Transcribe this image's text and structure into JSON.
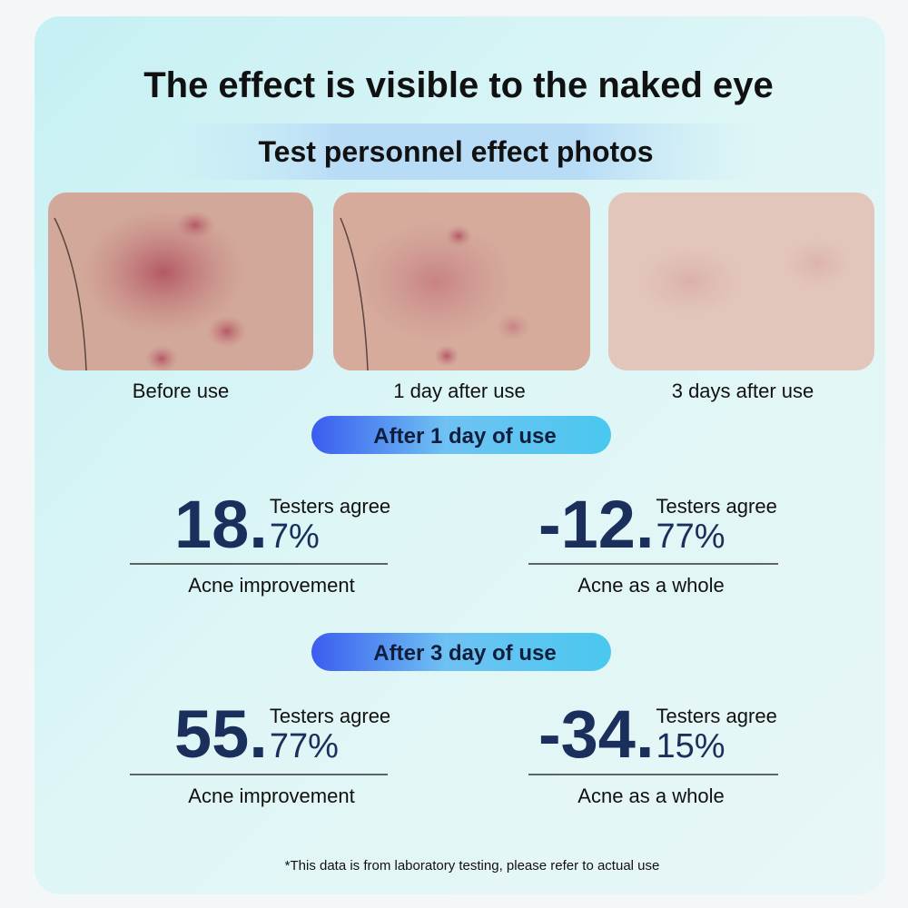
{
  "header": {
    "title": "The effect is visible to the naked eye",
    "subtitle": "Test personnel effect photos"
  },
  "photos": [
    {
      "caption": "Before use"
    },
    {
      "caption": "1 day after use"
    },
    {
      "caption": "3 days after use"
    }
  ],
  "sections": [
    {
      "badge": "After 1 day of use",
      "stats": [
        {
          "big": "18.",
          "small": "7%",
          "note": "Testers agree",
          "caption": "Acne improvement"
        },
        {
          "big": "-12.",
          "small": "77%",
          "note": "Testers agree",
          "caption": "Acne as a whole"
        }
      ]
    },
    {
      "badge": "After 3 day of use",
      "stats": [
        {
          "big": "55.",
          "small": "77%",
          "note": "Testers agree",
          "caption": "Acne improvement"
        },
        {
          "big": "-34.",
          "small": "15%",
          "note": "Testers agree",
          "caption": "Acne as a whole"
        }
      ]
    }
  ],
  "footnote": "*This data is from laboratory testing, please refer to actual use"
}
